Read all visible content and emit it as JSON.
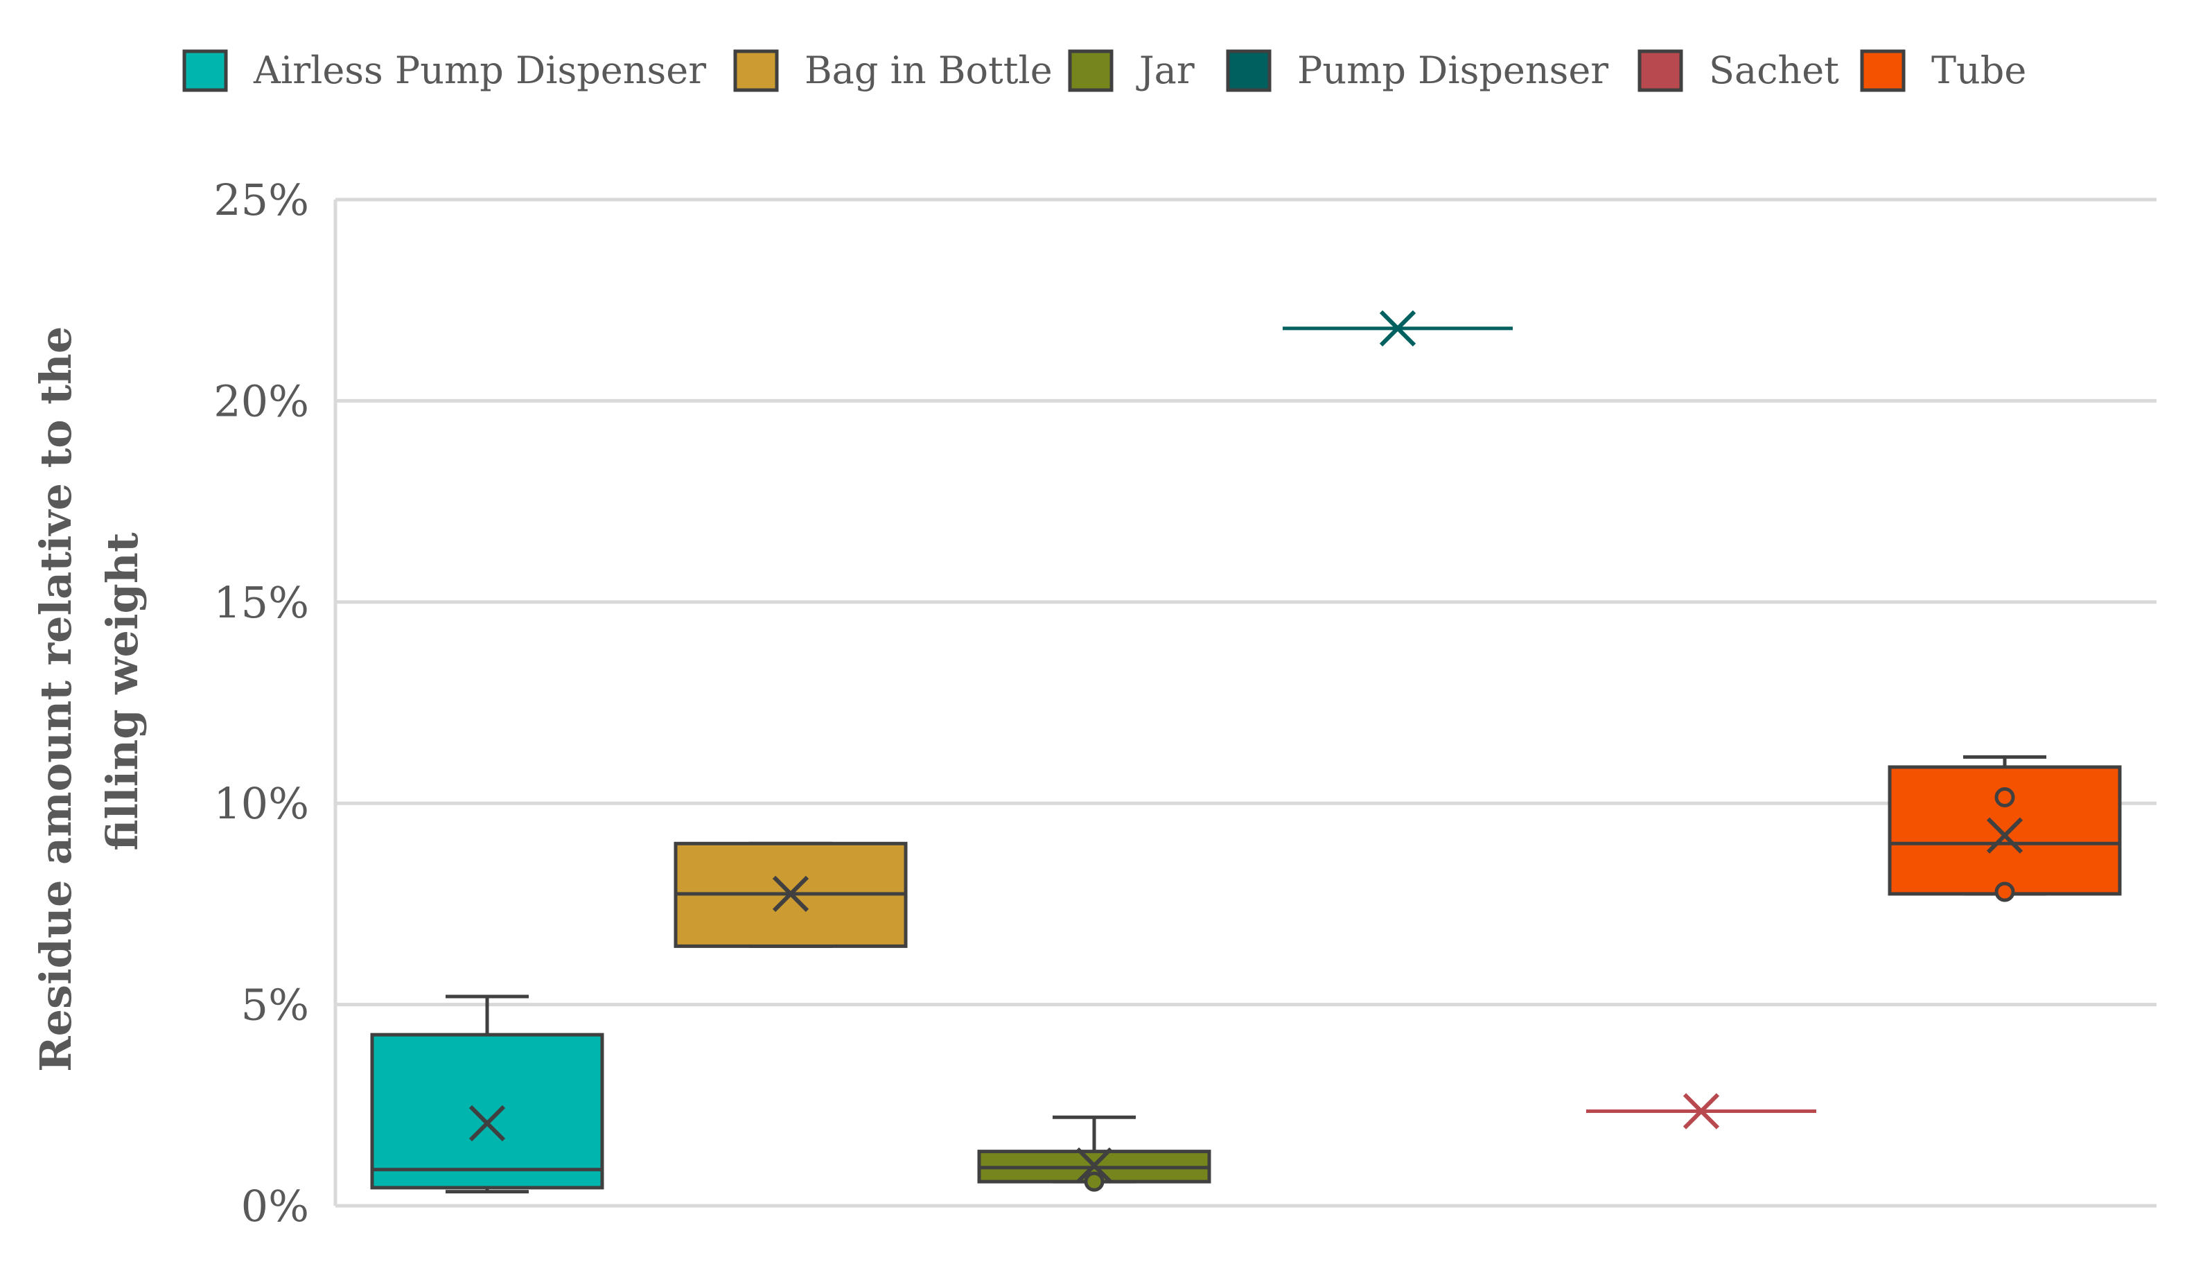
{
  "chart_data": {
    "type": "box",
    "ylabel_lines": [
      "Residue amount relative to the",
      "filling weight"
    ],
    "y_ticks": [
      "0%",
      "5%",
      "10%",
      "15%",
      "20%",
      "25%"
    ],
    "y_tick_values": [
      0,
      5,
      10,
      15,
      20,
      25
    ],
    "ylim": [
      0,
      25
    ],
    "grid": true,
    "legend_position": "top",
    "series": [
      {
        "name": "Airless Pump Dispenser",
        "color": "#00b5ad",
        "min": 0.35,
        "q1": 0.45,
        "median": 0.9,
        "q3": 4.25,
        "max": 5.2,
        "mean": 2.05,
        "outliers": []
      },
      {
        "name": "Bag in Bottle",
        "color": "#cc9c33",
        "min": 6.45,
        "q1": 6.45,
        "median": 7.75,
        "q3": 9.0,
        "max": 9.0,
        "mean": 7.75,
        "outliers": []
      },
      {
        "name": "Jar",
        "color": "#77861c",
        "min": 0.6,
        "q1": 0.6,
        "median": 0.95,
        "q3": 1.35,
        "max": 2.2,
        "mean": 1.0,
        "outliers": [
          0.6
        ]
      },
      {
        "name": "Pump Dispenser",
        "color": "#006060",
        "min": 21.8,
        "q1": 21.8,
        "median": 21.8,
        "q3": 21.8,
        "max": 21.8,
        "mean": 21.8,
        "outliers": []
      },
      {
        "name": "Sachet",
        "color": "#b84a4f",
        "min": 2.35,
        "q1": 2.35,
        "median": 2.35,
        "q3": 2.35,
        "max": 2.35,
        "mean": 2.35,
        "outliers": []
      },
      {
        "name": "Tube",
        "color": "#f55200",
        "min": 7.75,
        "q1": 7.75,
        "median": 9.0,
        "q3": 10.9,
        "max": 11.15,
        "mean": 9.2,
        "outliers": [
          10.15,
          7.8
        ]
      }
    ]
  }
}
